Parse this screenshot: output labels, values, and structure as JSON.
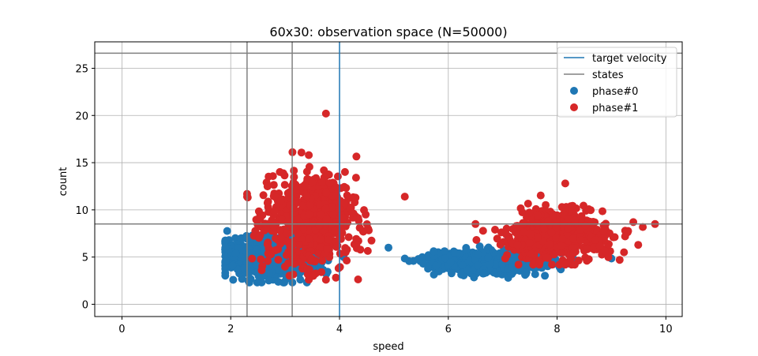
{
  "chart_data": {
    "type": "scatter",
    "title": "60x30: observation space (N=50000)",
    "xlabel": "speed",
    "ylabel": "count",
    "xlim": [
      -0.5,
      10.3
    ],
    "ylim": [
      -1.3,
      27.8
    ],
    "x_ticks": [
      "0",
      "2",
      "4",
      "6",
      "8",
      "10"
    ],
    "x_tick_values": [
      0,
      2,
      4,
      6,
      8,
      10
    ],
    "y_ticks": [
      "0",
      "5",
      "10",
      "15",
      "20",
      "25"
    ],
    "y_tick_values": [
      0,
      5,
      10,
      15,
      20,
      25
    ],
    "grid": true,
    "legend_position": "top-right",
    "target_velocity": {
      "label": "target velocity",
      "x": 4.0,
      "color": "#1f77b4"
    },
    "states": {
      "label": "states",
      "color": "#808080",
      "vertical_lines_x": [
        2.3,
        3.13
      ],
      "horizontal_lines_y": [
        8.5,
        26.6
      ]
    },
    "series": [
      {
        "name": "phase#0",
        "color": "#1f77b4",
        "clusters": [
          {
            "x_range": [
              1.9,
              4.9
            ],
            "y_range": [
              2.3,
              9.7
            ],
            "center": [
              2.8,
              5.0
            ]
          },
          {
            "x_range": [
              5.2,
              9.0
            ],
            "y_range": [
              2.8,
              6.9
            ],
            "center": [
              6.8,
              4.5
            ]
          }
        ]
      },
      {
        "name": "phase#1",
        "color": "#d62728",
        "clusters": [
          {
            "x_range": [
              2.3,
              5.2
            ],
            "y_range": [
              2.6,
              20.2
            ],
            "center": [
              3.5,
              9.0
            ]
          },
          {
            "x_range": [
              6.5,
              9.8
            ],
            "y_range": [
              4.2,
              12.8
            ],
            "center": [
              8.0,
              7.5
            ]
          }
        ]
      }
    ]
  }
}
